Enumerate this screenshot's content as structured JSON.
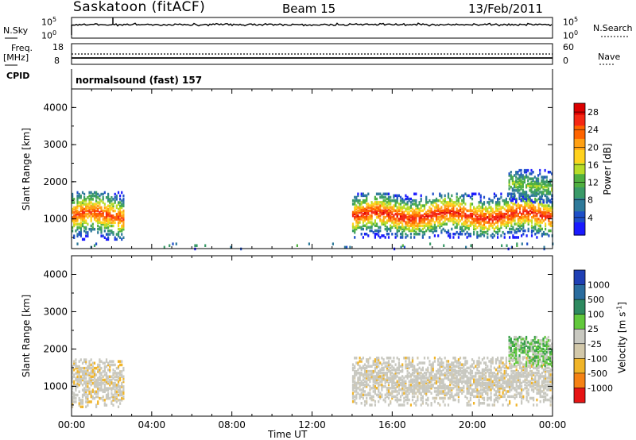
{
  "header": {
    "station": "Saskatoon (fitACF)",
    "beam": "Beam 15",
    "date": "13/Feb/2011"
  },
  "left_labels": {
    "nsky": "N.Sky",
    "freq": "Freq.",
    "freq_unit": "[MHz]",
    "cpid": "CPID"
  },
  "right_labels": {
    "nsearch": "N.Search",
    "nave": "Nave"
  },
  "strip_ticks": {
    "noise_left_top": "10^5",
    "noise_left_bottom": "10^0",
    "noise_right_top": "10^5",
    "noise_right_bottom": "10^0",
    "freq_left_top": "18",
    "freq_left_bottom": "8",
    "nave_right_top": "60",
    "nave_right_bottom": "0"
  },
  "cpid_text": "normalsound (fast) 157",
  "colors": {
    "power_scale": [
      "#1a1aff",
      "#1e4fc8",
      "#2f7a9a",
      "#3a9a68",
      "#50b040",
      "#b8dc28",
      "#ffd21e",
      "#ffa014",
      "#ff6400",
      "#f52814",
      "#dc0000"
    ],
    "velocity_scale": [
      "#1f3fb4",
      "#2a6c9e",
      "#2e8a60",
      "#38a048",
      "#62c83c",
      "#c8c8c0",
      "#d2c8aa",
      "#f0b428",
      "#f58214",
      "#f04b0a",
      "#e61414"
    ]
  },
  "chart_data": [
    {
      "type": "heatmap",
      "title": "Power",
      "xlabel": "Time UT",
      "ylabel": "Slant Range [km]",
      "x_ticks": [
        "00:00",
        "04:00",
        "08:00",
        "12:00",
        "16:00",
        "20:00",
        "00:00"
      ],
      "y_ticks": [
        "1000",
        "2000",
        "3000",
        "4000"
      ],
      "ylim": [
        200,
        4500
      ],
      "colorbar": {
        "label": "Power [dB]",
        "ticks": [
          "4",
          "8",
          "12",
          "16",
          "20",
          "24",
          "28"
        ],
        "range": [
          0,
          30
        ]
      },
      "echo_regions": [
        {
          "start_h": 0.0,
          "end_h": 2.6,
          "range_center_km": 1100,
          "range_width_km": 650,
          "peak_db": 26
        },
        {
          "start_h": 14.0,
          "end_h": 24.0,
          "range_center_km": 1100,
          "range_width_km": 600,
          "peak_db": 28
        },
        {
          "start_h": 21.8,
          "end_h": 24.0,
          "range_center_km": 1900,
          "range_width_km": 450,
          "peak_db": 14
        },
        {
          "start_h": 0.0,
          "end_h": 24.0,
          "range_center_km": 280,
          "range_width_km": 90,
          "peak_db": 12
        }
      ]
    },
    {
      "type": "heatmap",
      "title": "Velocity",
      "xlabel": "Time UT",
      "ylabel": "Slant Range [km]",
      "x_ticks": [
        "00:00",
        "04:00",
        "08:00",
        "12:00",
        "16:00",
        "20:00",
        "00:00"
      ],
      "y_ticks": [
        "1000",
        "2000",
        "3000",
        "4000"
      ],
      "ylim": [
        200,
        4500
      ],
      "colorbar": {
        "label": "Velocity [m s^-1]",
        "ticks": [
          "1000",
          "500",
          "100",
          "25",
          "-25",
          "-100",
          "-500",
          "-1000"
        ]
      },
      "echo_regions": [
        {
          "start_h": 0.0,
          "end_h": 2.6,
          "range_center_km": 1100,
          "range_width_km": 650,
          "typical_velocity": -10
        },
        {
          "start_h": 14.0,
          "end_h": 24.0,
          "range_center_km": 1150,
          "range_width_km": 650,
          "typical_velocity": 0
        },
        {
          "start_h": 21.8,
          "end_h": 24.0,
          "range_center_km": 1950,
          "range_width_km": 400,
          "typical_velocity": 120
        }
      ]
    }
  ]
}
